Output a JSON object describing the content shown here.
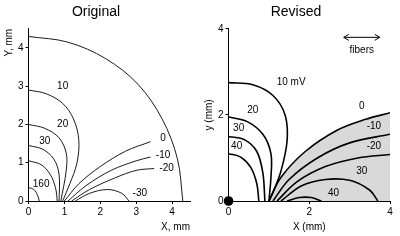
{
  "chart_data": [
    {
      "type": "line",
      "title": "Original",
      "x_label": "X, mm",
      "y_label": "Y, mm",
      "xlim": [
        0,
        4.5
      ],
      "ylim": [
        0,
        4.5
      ],
      "xticks": [
        0,
        1,
        2,
        3,
        4
      ],
      "yticks": [
        0,
        1,
        2,
        3,
        4
      ],
      "grid": false,
      "series": [
        {
          "color": "#000000",
          "x": [
            0,
            1.1,
            2.15,
            3.05,
            3.72,
            4.15,
            4.3
          ],
          "y": [
            4.3,
            4.15,
            3.72,
            3.05,
            2.15,
            1.1,
            0
          ]
        },
        {
          "color": "#000000",
          "x": [
            0,
            0.5,
            0.95,
            1.25,
            1.4,
            1.35,
            1.15,
            0.95
          ],
          "y": [
            2.9,
            2.8,
            2.55,
            2.15,
            1.6,
            1.0,
            0.45,
            0
          ]
        },
        {
          "color": "#000000",
          "x": [
            0,
            0.45,
            0.85,
            1.05,
            1.05,
            0.9
          ],
          "y": [
            2.0,
            1.9,
            1.65,
            1.25,
            0.8,
            0
          ]
        },
        {
          "color": "#000000",
          "x": [
            0,
            0.4,
            0.7,
            0.85,
            0.85
          ],
          "y": [
            1.45,
            1.35,
            1.1,
            0.7,
            0
          ]
        },
        {
          "color": "#000000",
          "x": [
            0,
            0.35,
            0.6,
            0.75,
            0.8
          ],
          "y": [
            1.05,
            0.95,
            0.7,
            0.35,
            0
          ]
        },
        {
          "color": "#000000",
          "x": [
            0,
            0.15,
            0.25,
            0.3
          ],
          "y": [
            0.35,
            0.3,
            0.15,
            0
          ]
        },
        {
          "color": "#000000",
          "x": [
            1.0,
            1.4,
            2.0,
            2.7,
            3.4
          ],
          "y": [
            0,
            0.45,
            0.9,
            1.3,
            1.55
          ]
        },
        {
          "color": "#000000",
          "x": [
            1.1,
            1.6,
            2.3,
            3.0,
            3.4
          ],
          "y": [
            0,
            0.4,
            0.8,
            1.05,
            1.15
          ]
        },
        {
          "color": "#000000",
          "x": [
            1.2,
            1.7,
            2.4,
            3.0,
            3.5
          ],
          "y": [
            0,
            0.3,
            0.6,
            0.8,
            0.85
          ]
        },
        {
          "color": "#000000",
          "x": [
            1.3,
            1.7,
            2.2,
            2.6,
            2.8
          ],
          "y": [
            0,
            0.2,
            0.3,
            0.2,
            0
          ]
        }
      ],
      "annotations": [
        {
          "text": "10",
          "x": 0.95,
          "y": 3.0
        },
        {
          "text": "20",
          "x": 0.95,
          "y": 2.0
        },
        {
          "text": "30",
          "x": 0.45,
          "y": 1.55
        },
        {
          "text": "160",
          "x": 0.35,
          "y": 0.45
        },
        {
          "text": "0",
          "x": 3.75,
          "y": 1.65
        },
        {
          "text": "-10",
          "x": 3.75,
          "y": 1.2
        },
        {
          "text": "-20",
          "x": 3.85,
          "y": 0.85
        },
        {
          "text": "-30",
          "x": 3.1,
          "y": 0.2
        }
      ]
    },
    {
      "type": "line",
      "title": "Revised",
      "x_label": "X (mm)",
      "y_label": "y (mm)",
      "xlim": [
        0,
        4
      ],
      "ylim": [
        0,
        4
      ],
      "xticks": [
        0,
        2,
        4
      ],
      "yticks": [
        0,
        2,
        4
      ],
      "grid": false,
      "series": [
        {
          "type": "area",
          "color": "#d9d9d9",
          "x": [
            1.0,
            1.3,
            1.9,
            2.7,
            3.4,
            4.0
          ],
          "y": [
            0,
            0.55,
            1.15,
            1.65,
            1.9,
            2.05
          ]
        },
        {
          "color": "#000000",
          "x": [
            0,
            0.6,
            1.1,
            1.4,
            1.45,
            1.3,
            1.1,
            1.0
          ],
          "y": [
            2.75,
            2.7,
            2.45,
            2.0,
            1.4,
            0.7,
            0.2,
            0
          ]
        },
        {
          "color": "#000000",
          "x": [
            0,
            0.45,
            0.85,
            1.05,
            1.05,
            1.0
          ],
          "y": [
            1.95,
            1.85,
            1.55,
            1.1,
            0.55,
            0
          ]
        },
        {
          "color": "#000000",
          "x": [
            0,
            0.4,
            0.7,
            0.85,
            0.9
          ],
          "y": [
            1.5,
            1.42,
            1.15,
            0.65,
            0
          ]
        },
        {
          "color": "#000000",
          "x": [
            0,
            0.3,
            0.55,
            0.7,
            0.75
          ],
          "y": [
            1.1,
            1.02,
            0.78,
            0.4,
            0
          ]
        },
        {
          "color": "#000000",
          "x": [
            1.0,
            1.3,
            1.9,
            2.7,
            3.4,
            4.0
          ],
          "y": [
            0,
            0.55,
            1.15,
            1.65,
            1.9,
            2.05
          ]
        },
        {
          "color": "#000000",
          "x": [
            1.1,
            1.5,
            2.2,
            3.0,
            4.0
          ],
          "y": [
            0,
            0.5,
            1.0,
            1.35,
            1.55
          ]
        },
        {
          "color": "#000000",
          "x": [
            1.2,
            1.7,
            2.4,
            3.2,
            4.0
          ],
          "y": [
            0,
            0.45,
            0.8,
            1.0,
            1.08
          ]
        },
        {
          "color": "#000000",
          "x": [
            1.3,
            1.8,
            2.4,
            3.0,
            3.5,
            3.7
          ],
          "y": [
            0,
            0.35,
            0.5,
            0.48,
            0.25,
            0
          ]
        },
        {
          "color": "#000000",
          "x": [
            1.45,
            1.75,
            2.05,
            2.3
          ],
          "y": [
            0,
            0.08,
            0.08,
            0
          ]
        },
        {
          "type": "scatter",
          "marker": "circle",
          "color": "#000000",
          "x": [
            0
          ],
          "y": [
            0
          ]
        }
      ],
      "annotations": [
        {
          "text": "10 mV",
          "x": 1.55,
          "y": 2.75
        },
        {
          "text": "20",
          "x": 0.6,
          "y": 2.1
        },
        {
          "text": "30",
          "x": 0.25,
          "y": 1.7
        },
        {
          "text": "40",
          "x": 0.2,
          "y": 1.27
        },
        {
          "text": "0",
          "x": 3.3,
          "y": 2.2
        },
        {
          "text": "-10",
          "x": 3.6,
          "y": 1.73
        },
        {
          "text": "-20",
          "x": 3.6,
          "y": 1.27
        },
        {
          "text": "30",
          "x": 3.3,
          "y": 0.7
        },
        {
          "text": "40",
          "x": 2.6,
          "y": 0.18
        },
        {
          "text": "fibers",
          "x": 3.3,
          "y": 3.5
        }
      ]
    }
  ]
}
